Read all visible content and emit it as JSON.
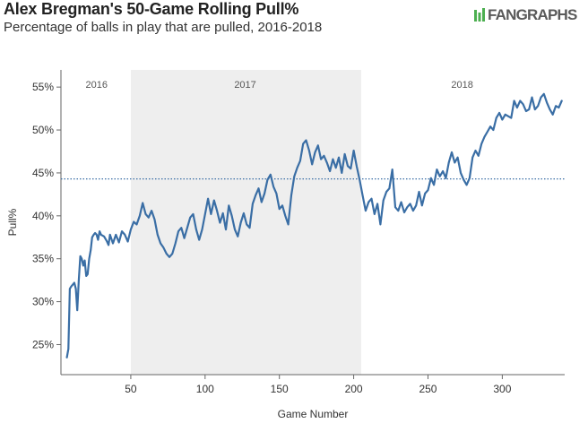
{
  "header": {
    "title": "Alex Bregman's 50-Game Rolling Pull%",
    "subtitle": "Percentage of balls in play that are pulled, 2016-2018",
    "logo_text": "FANGRAPHS"
  },
  "colors": {
    "line": "#3a6ea5",
    "shade": "#eeeeee",
    "mean_line": "#3a6ea5",
    "axis": "#666666"
  },
  "chart_data": {
    "type": "line",
    "title": "Alex Bregman's 50-Game Rolling Pull%",
    "subtitle": "Percentage of balls in play that are pulled, 2016-2018",
    "xlabel": "Game Number",
    "ylabel": "Pull%",
    "xlim": [
      3,
      342
    ],
    "ylim": [
      21.5,
      57
    ],
    "x_ticks": [
      50,
      100,
      150,
      200,
      250,
      300
    ],
    "y_ticks": [
      25,
      30,
      35,
      40,
      45,
      50,
      55
    ],
    "x_tick_labels": [
      "50",
      "100",
      "150",
      "200",
      "250",
      "300"
    ],
    "y_tick_labels": [
      "25%",
      "30%",
      "35%",
      "40%",
      "45%",
      "50%",
      "55%"
    ],
    "reference_line": {
      "y": 44.3,
      "style": "dotted"
    },
    "shaded_region": {
      "x_start": 50,
      "x_end": 205,
      "label": "2017"
    },
    "season_labels": [
      {
        "label": "2016",
        "x": 27
      },
      {
        "label": "2017",
        "x": 127
      },
      {
        "label": "2018",
        "x": 273
      }
    ],
    "series": [
      {
        "name": "50-Game Rolling Pull%",
        "x": [
          7,
          8,
          9,
          10,
          11,
          12,
          13,
          14,
          15,
          16,
          17,
          18,
          19,
          20,
          21,
          22,
          23,
          24,
          25,
          26,
          27,
          28,
          29,
          30,
          32,
          34,
          35,
          36,
          38,
          40,
          42,
          44,
          46,
          48,
          50,
          52,
          54,
          56,
          58,
          60,
          62,
          64,
          66,
          68,
          70,
          72,
          74,
          76,
          78,
          80,
          82,
          84,
          86,
          88,
          90,
          92,
          94,
          96,
          98,
          100,
          102,
          104,
          106,
          108,
          110,
          112,
          114,
          116,
          118,
          120,
          122,
          124,
          126,
          128,
          130,
          132,
          134,
          136,
          138,
          140,
          142,
          144,
          146,
          148,
          150,
          152,
          154,
          156,
          158,
          160,
          162,
          164,
          166,
          168,
          170,
          172,
          174,
          176,
          178,
          180,
          182,
          184,
          186,
          188,
          190,
          192,
          194,
          196,
          198,
          200,
          202,
          204,
          206,
          208,
          210,
          212,
          214,
          216,
          218,
          220,
          222,
          224,
          226,
          228,
          230,
          232,
          234,
          236,
          238,
          240,
          242,
          244,
          246,
          248,
          250,
          252,
          254,
          256,
          258,
          260,
          262,
          264,
          266,
          268,
          270,
          272,
          274,
          276,
          278,
          280,
          282,
          284,
          286,
          288,
          290,
          292,
          294,
          296,
          298,
          300,
          302,
          304,
          306,
          308,
          310,
          312,
          314,
          316,
          318,
          320,
          322,
          324,
          326,
          328,
          330,
          332,
          334,
          336,
          338,
          340
        ],
        "values": [
          23.5,
          24.5,
          31.5,
          31.8,
          32.0,
          32.2,
          31.5,
          29.0,
          32.5,
          35.3,
          35.0,
          34.2,
          34.8,
          33.0,
          33.2,
          35.0,
          36.0,
          37.5,
          37.8,
          38.0,
          37.8,
          37.2,
          38.2,
          37.8,
          37.6,
          37.0,
          36.6,
          37.8,
          36.8,
          37.8,
          36.9,
          38.2,
          37.8,
          37.0,
          38.4,
          39.3,
          39.0,
          40.0,
          41.5,
          40.2,
          39.8,
          40.6,
          39.6,
          37.8,
          36.8,
          36.3,
          35.6,
          35.2,
          35.6,
          36.8,
          38.2,
          38.6,
          37.4,
          38.6,
          39.8,
          40.2,
          38.4,
          37.2,
          38.4,
          40.2,
          42.0,
          40.2,
          41.8,
          40.6,
          39.2,
          40.3,
          38.4,
          41.2,
          40.0,
          38.4,
          37.6,
          39.2,
          40.3,
          39.0,
          38.6,
          41.4,
          42.4,
          43.2,
          41.6,
          42.6,
          44.2,
          44.8,
          43.4,
          42.6,
          40.8,
          41.2,
          40.0,
          39.0,
          42.4,
          44.6,
          45.6,
          46.4,
          48.4,
          48.8,
          47.6,
          46.0,
          47.4,
          48.2,
          46.6,
          47.0,
          46.2,
          45.2,
          46.6,
          45.6,
          46.8,
          45.0,
          47.2,
          45.8,
          45.5,
          47.6,
          45.8,
          44.2,
          42.4,
          40.6,
          41.6,
          42.0,
          40.2,
          41.4,
          39.0,
          41.8,
          42.8,
          43.2,
          45.4,
          41.0,
          40.6,
          41.6,
          40.4,
          41.0,
          41.4,
          40.6,
          41.2,
          42.8,
          41.2,
          42.6,
          43.0,
          44.4,
          43.6,
          45.4,
          44.6,
          45.2,
          44.4,
          46.2,
          47.4,
          46.2,
          46.8,
          45.0,
          44.2,
          43.6,
          44.4,
          46.8,
          47.6,
          47.0,
          48.4,
          49.2,
          49.8,
          50.4,
          50.0,
          51.4,
          52.0,
          51.2,
          51.8,
          51.6,
          51.4,
          53.4,
          52.6,
          53.4,
          53.0,
          52.2,
          52.4,
          53.8,
          52.4,
          52.8,
          53.8,
          54.2,
          53.2,
          52.4,
          51.8,
          52.8,
          52.6,
          53.4
        ]
      }
    ]
  }
}
